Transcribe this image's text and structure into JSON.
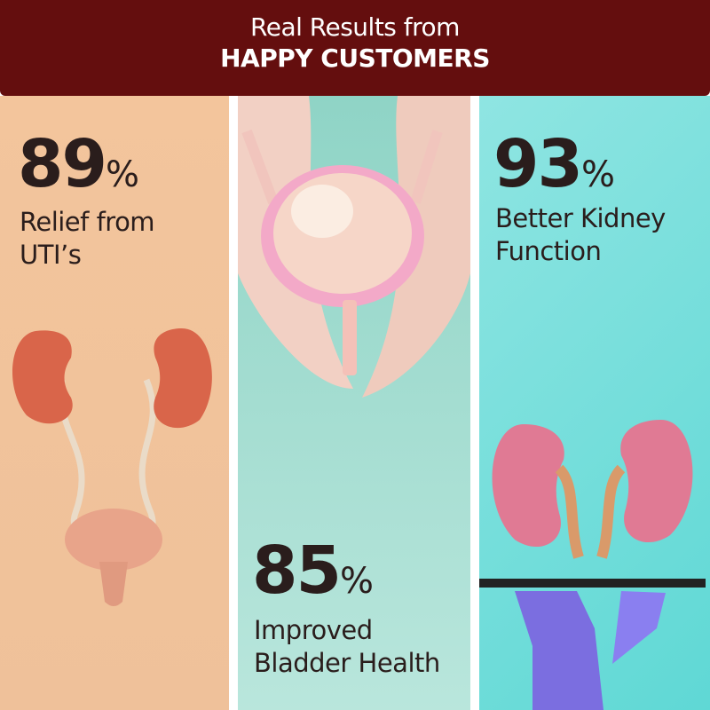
{
  "header": {
    "line1": "Real Results from",
    "line2": "HAPPY CUSTOMERS"
  },
  "stats": [
    {
      "value": "89",
      "unit": "%",
      "label_line1": "Relief from",
      "label_line2": "UTI’s"
    },
    {
      "value": "85",
      "unit": "%",
      "label_line1": "Improved",
      "label_line2": "Bladder Health"
    },
    {
      "value": "93",
      "unit": "%",
      "label_line1": "Better Kidney",
      "label_line2": "Function"
    }
  ],
  "colors": {
    "header": "#640e0e",
    "panel_left": "#f3c59c",
    "panel_middle": "#a6dcd0",
    "panel_right": "#8ee3e0",
    "text": "#2a1d1c"
  }
}
